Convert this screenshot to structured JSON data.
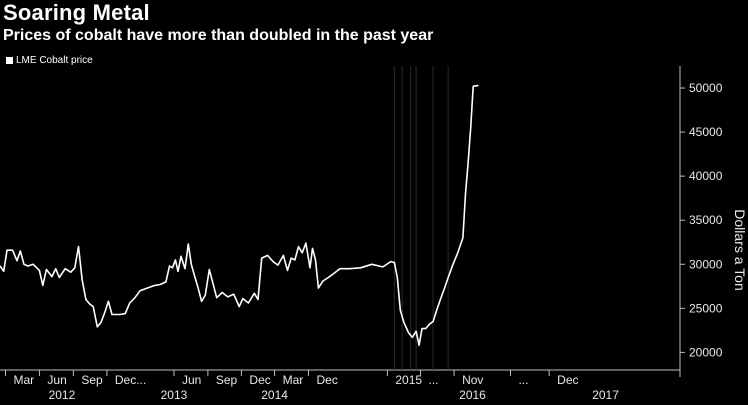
{
  "chart_data": {
    "type": "line",
    "title": "Soaring Metal",
    "subtitle": "Prices of cobalt have more than doubled in the past year",
    "ylabel": "Dollars a Ton",
    "ylim": [
      18000,
      52500
    ],
    "yticks": [
      20000,
      25000,
      30000,
      35000,
      40000,
      45000,
      50000
    ],
    "ytick_labels": [
      "20000",
      "25000",
      "30000",
      "35000",
      "40000",
      "45000",
      "50000"
    ],
    "xlim": [
      "2012-02-15",
      "2017-03-05"
    ],
    "grid": false,
    "legend_position": "top-left",
    "line_color": "#ffffff",
    "x_month_ticks": [
      {
        "date": "2012-03-01",
        "label": "Mar"
      },
      {
        "date": "2012-06-01",
        "label": "Jun"
      },
      {
        "date": "2012-09-01",
        "label": "Sep"
      },
      {
        "date": "2012-12-01",
        "label": "Dec..."
      },
      {
        "date": "2013-06-01",
        "label": "Jun"
      },
      {
        "date": "2013-09-01",
        "label": "Sep"
      },
      {
        "date": "2013-12-01",
        "label": "Dec"
      },
      {
        "date": "2014-03-01",
        "label": "Mar"
      },
      {
        "date": "2014-06-01",
        "label": "Dec"
      },
      {
        "date": "2015-01-01",
        "label": "2015"
      },
      {
        "date": "2015-04-01",
        "label": "..."
      },
      {
        "date": "2015-07-01",
        "label": "Nov"
      },
      {
        "date": "2015-12-01",
        "label": "..."
      },
      {
        "date": "2016-03-15",
        "label": "Dec"
      }
    ],
    "x_year_labels": [
      {
        "date": "2012-08-01",
        "label": "2012"
      },
      {
        "date": "2013-06-01",
        "label": "2013"
      },
      {
        "date": "2014-03-01",
        "label": "2014"
      },
      {
        "date": "2015-08-20",
        "label": "2016"
      },
      {
        "date": "2016-08-15",
        "label": "2017"
      }
    ],
    "series": [
      {
        "name": "LME Cobalt price",
        "points": [
          [
            "2012-02-15",
            29800
          ],
          [
            "2012-02-25",
            29200
          ],
          [
            "2012-03-05",
            31600
          ],
          [
            "2012-03-20",
            31600
          ],
          [
            "2012-04-01",
            30400
          ],
          [
            "2012-04-10",
            31500
          ],
          [
            "2012-04-20",
            30000
          ],
          [
            "2012-05-01",
            29800
          ],
          [
            "2012-05-15",
            30000
          ],
          [
            "2012-06-01",
            29300
          ],
          [
            "2012-06-10",
            27600
          ],
          [
            "2012-06-20",
            29400
          ],
          [
            "2012-07-05",
            28600
          ],
          [
            "2012-07-15",
            29500
          ],
          [
            "2012-07-25",
            28500
          ],
          [
            "2012-08-10",
            29500
          ],
          [
            "2012-08-25",
            29100
          ],
          [
            "2012-09-05",
            29600
          ],
          [
            "2012-09-15",
            32000
          ],
          [
            "2012-09-25",
            28200
          ],
          [
            "2012-10-05",
            26000
          ],
          [
            "2012-10-15",
            25500
          ],
          [
            "2012-10-25",
            25200
          ],
          [
            "2012-11-05",
            22900
          ],
          [
            "2012-11-15",
            23400
          ],
          [
            "2012-11-25",
            24500
          ],
          [
            "2012-12-05",
            25800
          ],
          [
            "2012-12-15",
            24300
          ],
          [
            "2013-01-05",
            24300
          ],
          [
            "2013-01-20",
            24400
          ],
          [
            "2013-02-01",
            25600
          ],
          [
            "2013-02-15",
            26200
          ],
          [
            "2013-03-01",
            27000
          ],
          [
            "2013-03-20",
            27300
          ],
          [
            "2013-04-10",
            27600
          ],
          [
            "2013-04-25",
            27700
          ],
          [
            "2013-05-10",
            28000
          ],
          [
            "2013-05-20",
            29800
          ],
          [
            "2013-05-28",
            29600
          ],
          [
            "2013-06-05",
            30500
          ],
          [
            "2013-06-12",
            29200
          ],
          [
            "2013-06-20",
            30900
          ],
          [
            "2013-07-01",
            29500
          ],
          [
            "2013-07-10",
            32300
          ],
          [
            "2013-07-18",
            30000
          ],
          [
            "2013-07-28",
            28500
          ],
          [
            "2013-08-05",
            27400
          ],
          [
            "2013-08-15",
            25800
          ],
          [
            "2013-08-25",
            26500
          ],
          [
            "2013-09-05",
            29400
          ],
          [
            "2013-09-15",
            27800
          ],
          [
            "2013-09-25",
            26200
          ],
          [
            "2013-10-10",
            26800
          ],
          [
            "2013-10-25",
            26300
          ],
          [
            "2013-11-10",
            26600
          ],
          [
            "2013-11-25",
            25200
          ],
          [
            "2013-12-05",
            26100
          ],
          [
            "2013-12-20",
            25600
          ],
          [
            "2014-01-05",
            26700
          ],
          [
            "2014-01-15",
            26000
          ],
          [
            "2014-01-25",
            30700
          ],
          [
            "2014-02-10",
            31000
          ],
          [
            "2014-02-25",
            30300
          ],
          [
            "2014-03-10",
            29900
          ],
          [
            "2014-03-25",
            31000
          ],
          [
            "2014-04-05",
            29300
          ],
          [
            "2014-04-15",
            30700
          ],
          [
            "2014-04-25",
            30500
          ],
          [
            "2014-05-05",
            32000
          ],
          [
            "2014-05-15",
            31300
          ],
          [
            "2014-05-25",
            32400
          ],
          [
            "2014-06-05",
            29600
          ],
          [
            "2014-06-12",
            31800
          ],
          [
            "2014-06-20",
            30500
          ],
          [
            "2014-06-28",
            27300
          ],
          [
            "2014-07-10",
            28100
          ],
          [
            "2014-07-25",
            28500
          ],
          [
            "2014-08-10",
            29000
          ],
          [
            "2014-08-25",
            29500
          ],
          [
            "2014-09-20",
            29500
          ],
          [
            "2014-10-20",
            29600
          ],
          [
            "2014-11-20",
            30000
          ],
          [
            "2014-12-20",
            29700
          ],
          [
            "2015-01-10",
            30300
          ],
          [
            "2015-01-20",
            30200
          ],
          [
            "2015-01-28",
            28500
          ],
          [
            "2015-02-05",
            24800
          ],
          [
            "2015-02-15",
            23400
          ],
          [
            "2015-02-28",
            22200
          ],
          [
            "2015-03-10",
            21700
          ],
          [
            "2015-03-20",
            22400
          ],
          [
            "2015-03-28",
            20800
          ],
          [
            "2015-04-05",
            22700
          ],
          [
            "2015-04-15",
            22700
          ],
          [
            "2015-04-25",
            23200
          ],
          [
            "2015-05-05",
            23500
          ],
          [
            "2015-05-15",
            24800
          ],
          [
            "2015-05-25",
            26000
          ],
          [
            "2015-06-05",
            27300
          ],
          [
            "2015-06-15",
            28500
          ],
          [
            "2015-06-28",
            30000
          ],
          [
            "2015-07-10",
            31200
          ],
          [
            "2015-07-25",
            33000
          ],
          [
            "2015-08-01",
            38000
          ],
          [
            "2015-08-08",
            41500
          ],
          [
            "2015-08-15",
            45500
          ],
          [
            "2015-08-22",
            50200
          ],
          [
            "2015-09-05",
            50300
          ]
        ]
      }
    ]
  }
}
